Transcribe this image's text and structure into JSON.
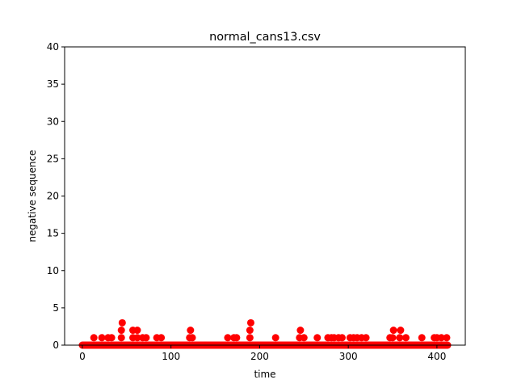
{
  "chart_data": {
    "type": "scatter",
    "title": "normal_cans13.csv",
    "xlabel": "time",
    "ylabel": "negative sequence",
    "xlim": [
      -20,
      432
    ],
    "ylim": [
      0,
      40
    ],
    "xticks": [
      0,
      100,
      200,
      300,
      400
    ],
    "yticks": [
      0,
      5,
      10,
      15,
      20,
      25,
      30,
      35,
      40
    ],
    "grid": false,
    "marker_color": "#ff0000",
    "series": [
      {
        "baseline_range": [
          0,
          412
        ],
        "baseline_value": 0,
        "points": [
          [
            13,
            1
          ],
          [
            22,
            1
          ],
          [
            29,
            1
          ],
          [
            33,
            1
          ],
          [
            44,
            1
          ],
          [
            44,
            2
          ],
          [
            45,
            3
          ],
          [
            57,
            1
          ],
          [
            57,
            2
          ],
          [
            62,
            1
          ],
          [
            62,
            2
          ],
          [
            68,
            1
          ],
          [
            72,
            1
          ],
          [
            84,
            1
          ],
          [
            89,
            1
          ],
          [
            121,
            1
          ],
          [
            122,
            2
          ],
          [
            124,
            1
          ],
          [
            164,
            1
          ],
          [
            171,
            1
          ],
          [
            174,
            1
          ],
          [
            189,
            1
          ],
          [
            189,
            2
          ],
          [
            190,
            3
          ],
          [
            218,
            1
          ],
          [
            245,
            1
          ],
          [
            246,
            2
          ],
          [
            250,
            1
          ],
          [
            265,
            1
          ],
          [
            277,
            1
          ],
          [
            281,
            1
          ],
          [
            284,
            1
          ],
          [
            289,
            1
          ],
          [
            293,
            1
          ],
          [
            302,
            1
          ],
          [
            306,
            1
          ],
          [
            310,
            1
          ],
          [
            315,
            1
          ],
          [
            320,
            1
          ],
          [
            347,
            1
          ],
          [
            350,
            1
          ],
          [
            351,
            2
          ],
          [
            358,
            1
          ],
          [
            359,
            2
          ],
          [
            365,
            1
          ],
          [
            383,
            1
          ],
          [
            397,
            1
          ],
          [
            400,
            1
          ],
          [
            405,
            1
          ],
          [
            411,
            1
          ]
        ]
      }
    ]
  }
}
